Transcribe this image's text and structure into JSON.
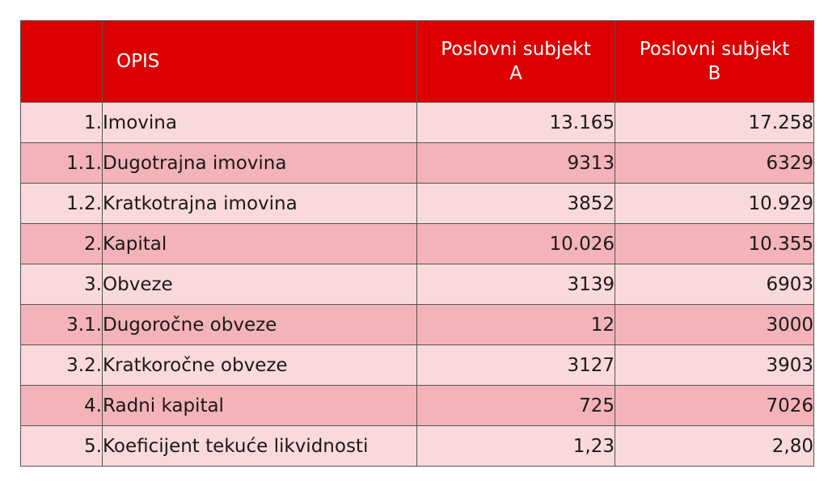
{
  "table": {
    "header": {
      "num": "",
      "opis": "OPIS",
      "col_a_line1": "Poslovni subjekt",
      "col_a_line2": "A",
      "col_b_line1": "Poslovni subjekt",
      "col_b_line2": "B"
    },
    "rows": [
      {
        "num": "1.",
        "opis": "Imovina",
        "a": "13.165",
        "b": "17.258"
      },
      {
        "num": "1.1.",
        "opis": "Dugotrajna imovina",
        "a": "9313",
        "b": "6329"
      },
      {
        "num": "1.2.",
        "opis": "Kratkotrajna imovina",
        "a": "3852",
        "b": "10.929"
      },
      {
        "num": "2.",
        "opis": "Kapital",
        "a": "10.026",
        "b": "10.355"
      },
      {
        "num": "3.",
        "opis": "Obveze",
        "a": "3139",
        "b": "6903"
      },
      {
        "num": "3.1.",
        "opis": "Dugoročne obveze",
        "a": "12",
        "b": "3000"
      },
      {
        "num": "3.2.",
        "opis": "Kratkoročne obveze",
        "a": "3127",
        "b": "3903"
      },
      {
        "num": "4.",
        "opis": "Radni kapital",
        "a": "725",
        "b": "7026"
      },
      {
        "num": "5.",
        "opis": "Koeficijent tekuće likvidnosti",
        "a": "1,23",
        "b": "2,80"
      }
    ],
    "colors": {
      "header_bg": "#dc0000",
      "row_light": "#f9d9dc",
      "row_dark": "#f3b3b8",
      "border": "#555555"
    }
  }
}
